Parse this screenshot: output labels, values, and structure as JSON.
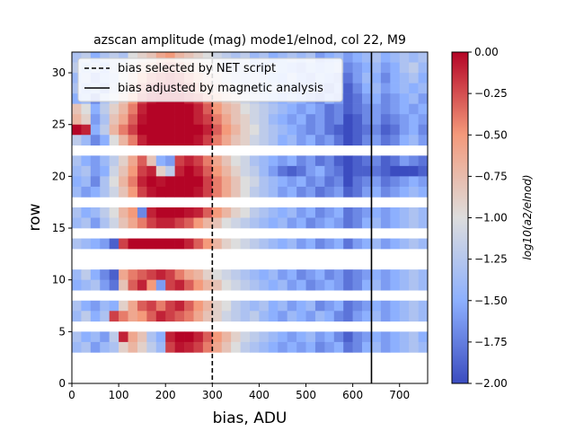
{
  "chart_data": {
    "type": "heatmap",
    "title": "azscan amplitude (mag) mode1/elnod, col 22, M9",
    "xlabel": "bias, ADU",
    "ylabel": "row",
    "xlim": [
      0,
      760
    ],
    "ylim": [
      0,
      32
    ],
    "x_ticks": [
      0,
      100,
      200,
      300,
      400,
      500,
      600,
      700
    ],
    "y_ticks": [
      0,
      5,
      10,
      15,
      20,
      25,
      30
    ],
    "colorbar": {
      "label": "log10(a2/elnod)",
      "colormap": "coolwarm",
      "min": -2.0,
      "max": 0.0,
      "ticks": [
        0.0,
        -0.25,
        -0.5,
        -0.75,
        -1.0,
        -1.25,
        -1.5,
        -1.75,
        -2.0
      ],
      "tick_labels": [
        "0.00",
        "−0.25",
        "−0.50",
        "−0.75",
        "−1.00",
        "−1.25",
        "−1.50",
        "−1.75",
        "−2.00"
      ]
    },
    "vlines": [
      {
        "x": 300,
        "style": "dashed",
        "label": "bias selected by NET script"
      },
      {
        "x": 640,
        "style": "solid",
        "label": "bias adjusted by magnetic analysis"
      }
    ],
    "legend_position": "top-left",
    "grid": false,
    "bias_step": 20,
    "rows_present": [
      3,
      4,
      6,
      7,
      9,
      10,
      13,
      15,
      16,
      18,
      19,
      20,
      21,
      23,
      24,
      25,
      26,
      27,
      28,
      29,
      30,
      31
    ],
    "row_profiles": [
      {
        "row": 31,
        "values": [
          -1.3,
          -1.2,
          -1.5,
          -1.3,
          -1.2,
          -1.3,
          -1.0,
          -0.9,
          -0.8,
          -0.6,
          -0.5,
          -0.7,
          -0.8,
          -0.9,
          -1.0,
          -1.1,
          -1.2,
          -1.3,
          -1.2,
          -1.4,
          -1.3,
          -1.5,
          -1.4,
          -1.3,
          -1.4,
          -1.3,
          -1.6,
          -1.5,
          -1.4,
          -1.6,
          -1.5,
          -1.4,
          -1.3,
          -1.5,
          -1.4,
          -1.3,
          -1.4,
          -1.3
        ]
      },
      {
        "row": 30,
        "values": [
          -1.2,
          -1.4,
          -1.3,
          -1.5,
          -1.2,
          -1.1,
          -0.9,
          -0.7,
          -0.6,
          -0.4,
          -0.3,
          -0.4,
          -0.6,
          -0.8,
          -0.9,
          -1.0,
          -1.2,
          -1.3,
          -1.2,
          -1.4,
          -1.5,
          -1.3,
          -1.4,
          -1.5,
          -1.6,
          -1.4,
          -1.5,
          -1.4,
          -1.3,
          -1.7,
          -1.6,
          -1.5,
          -1.4,
          -1.6,
          -1.5,
          -1.3,
          -1.2,
          -1.4
        ]
      },
      {
        "row": 29,
        "values": [
          -1.4,
          -1.3,
          -1.6,
          -1.4,
          -1.3,
          -1.0,
          -0.8,
          -0.5,
          -0.3,
          -0.2,
          -0.1,
          -0.2,
          -0.4,
          -0.6,
          -0.8,
          -0.9,
          -1.1,
          -1.2,
          -1.3,
          -1.2,
          -1.3,
          -1.4,
          -1.5,
          -1.3,
          -1.5,
          -1.6,
          -1.4,
          -1.5,
          -1.6,
          -1.8,
          -1.6,
          -1.4,
          -1.5,
          -1.7,
          -1.5,
          -1.4,
          -1.3,
          -1.5
        ]
      },
      {
        "row": 28,
        "values": [
          -1.3,
          -1.5,
          -1.4,
          -1.6,
          -1.2,
          -0.9,
          -0.6,
          -0.3,
          -0.1,
          -0.05,
          -0.05,
          -0.1,
          -0.2,
          -0.4,
          -0.6,
          -0.8,
          -0.9,
          -1.1,
          -1.2,
          -1.3,
          -1.4,
          -1.3,
          -1.4,
          -1.5,
          -1.6,
          -1.5,
          -1.6,
          -1.7,
          -1.5,
          -1.9,
          -1.7,
          -1.5,
          -1.4,
          -1.6,
          -1.5,
          -1.4,
          -1.5,
          -1.4
        ]
      },
      {
        "row": 27,
        "values": [
          -1.5,
          -1.4,
          -1.7,
          -1.3,
          -1.1,
          -0.8,
          -0.5,
          -0.2,
          -0.05,
          0.0,
          0.0,
          0.0,
          -0.1,
          -0.2,
          -0.4,
          -0.6,
          -0.8,
          -0.9,
          -1.1,
          -1.2,
          -1.3,
          -1.4,
          -1.5,
          -1.4,
          -1.5,
          -1.6,
          -1.7,
          -1.5,
          -1.6,
          -1.9,
          -1.8,
          -1.6,
          -1.5,
          -1.7,
          -1.6,
          -1.5,
          -1.4,
          -1.6
        ]
      },
      {
        "row": 26,
        "values": [
          -0.8,
          -1.0,
          -1.5,
          -1.2,
          -0.9,
          -0.7,
          -0.4,
          -0.1,
          0.0,
          0.0,
          0.0,
          0.0,
          0.0,
          -0.1,
          -0.3,
          -0.5,
          -0.7,
          -0.8,
          -1.0,
          -1.1,
          -1.2,
          -1.3,
          -1.4,
          -1.5,
          -1.6,
          -1.5,
          -1.6,
          -1.8,
          -1.7,
          -1.9,
          -1.8,
          -1.7,
          -1.6,
          -1.7,
          -1.6,
          -1.5,
          -1.6,
          -1.5
        ]
      },
      {
        "row": 25,
        "values": [
          -0.7,
          -0.9,
          -1.6,
          -1.3,
          -0.8,
          -0.6,
          -0.3,
          -0.05,
          0.0,
          0.0,
          0.0,
          0.0,
          0.0,
          -0.1,
          -0.2,
          -0.4,
          -0.6,
          -0.8,
          -0.9,
          -1.1,
          -1.2,
          -1.4,
          -1.5,
          -1.6,
          -1.5,
          -1.7,
          -1.6,
          -1.8,
          -1.7,
          -2.0,
          -1.9,
          -1.7,
          -1.6,
          -1.8,
          -1.7,
          -1.6,
          -1.5,
          -1.6
        ]
      },
      {
        "row": 24,
        "values": [
          0.0,
          -0.1,
          -1.5,
          -1.2,
          -0.7,
          -0.4,
          -0.2,
          0.0,
          0.0,
          0.0,
          0.0,
          0.0,
          0.0,
          0.0,
          -0.1,
          -0.3,
          -0.5,
          -0.7,
          -0.9,
          -1.0,
          -1.2,
          -1.3,
          -1.4,
          -1.5,
          -1.6,
          -1.7,
          -1.6,
          -1.8,
          -1.9,
          -2.0,
          -1.9,
          -1.8,
          -1.7,
          -1.9,
          -1.8,
          -1.6,
          -1.5,
          -1.7
        ]
      },
      {
        "row": 23,
        "values": [
          -1.2,
          -1.4,
          -1.7,
          -1.5,
          -1.0,
          -0.7,
          -0.4,
          -0.1,
          0.0,
          0.0,
          0.0,
          0.0,
          0.0,
          -0.05,
          -0.2,
          -0.4,
          -0.6,
          -0.8,
          -0.9,
          -1.1,
          -1.2,
          -1.3,
          -1.5,
          -1.4,
          -1.6,
          -1.5,
          -1.7,
          -1.6,
          -1.8,
          -2.0,
          -1.9,
          -1.7,
          -1.6,
          -1.8,
          -1.7,
          -1.5,
          -1.4,
          -1.6
        ]
      },
      {
        "row": 21,
        "values": [
          -1.3,
          -1.5,
          -1.6,
          -1.4,
          -1.2,
          -0.9,
          -0.6,
          -0.3,
          -0.8,
          -1.5,
          -1.6,
          -0.2,
          -0.1,
          -0.2,
          -0.4,
          -0.6,
          -0.8,
          -1.0,
          -1.1,
          -1.3,
          -1.4,
          -1.5,
          -1.6,
          -1.5,
          -1.7,
          -1.6,
          -1.8,
          -1.7,
          -1.9,
          -2.0,
          -1.9,
          -1.8,
          -1.7,
          -1.9,
          -1.8,
          -1.6,
          -1.7,
          -1.8
        ]
      },
      {
        "row": 20,
        "values": [
          -1.4,
          -1.3,
          -1.6,
          -1.5,
          -1.1,
          -0.8,
          -0.5,
          -0.2,
          -0.1,
          -0.9,
          -1.2,
          -0.1,
          0.0,
          -0.1,
          -0.3,
          -0.5,
          -0.7,
          -0.9,
          -1.1,
          -1.2,
          -1.4,
          -1.6,
          -1.8,
          -1.9,
          -1.8,
          -1.6,
          -1.5,
          -1.7,
          -1.8,
          -2.0,
          -1.9,
          -1.9,
          -1.8,
          -1.9,
          -2.0,
          -2.0,
          -2.0,
          -1.9
        ]
      },
      {
        "row": 19,
        "values": [
          -1.5,
          -1.4,
          -1.7,
          -1.3,
          -1.0,
          -0.7,
          -0.4,
          -0.1,
          0.0,
          -0.05,
          0.0,
          0.0,
          0.0,
          0.0,
          -0.2,
          -0.4,
          -0.6,
          -0.8,
          -1.0,
          -1.1,
          -1.3,
          -1.4,
          -1.5,
          -1.6,
          -1.5,
          -1.7,
          -1.6,
          -1.8,
          -1.7,
          -2.0,
          -1.8,
          -1.7,
          -1.6,
          -1.8,
          -1.7,
          -1.6,
          -1.5,
          -1.6
        ]
      },
      {
        "row": 18,
        "values": [
          -1.4,
          -1.6,
          -1.5,
          -1.3,
          -1.1,
          -0.8,
          -0.5,
          -0.2,
          -0.05,
          0.0,
          0.0,
          0.0,
          0.0,
          -0.05,
          -0.2,
          -0.4,
          -0.6,
          -0.8,
          -1.0,
          -1.2,
          -1.3,
          -1.4,
          -1.6,
          -1.5,
          -1.7,
          -1.6,
          -1.8,
          -1.7,
          -1.6,
          -1.9,
          -1.8,
          -1.6,
          -1.5,
          -1.7,
          -1.6,
          -1.5,
          -1.4,
          -1.5
        ]
      },
      {
        "row": 16,
        "values": [
          -1.3,
          -1.5,
          -1.4,
          -1.2,
          -1.0,
          -0.7,
          -0.5,
          -1.7,
          -0.1,
          0.0,
          0.0,
          0.0,
          -0.05,
          -0.1,
          -0.3,
          -0.5,
          -0.7,
          -0.9,
          -1.0,
          -1.2,
          -1.3,
          -1.4,
          -1.5,
          -1.4,
          -1.6,
          -1.5,
          -1.7,
          -1.6,
          -1.5,
          -1.8,
          -1.7,
          -1.6,
          -1.5,
          -1.6,
          -1.5,
          -1.4,
          -1.3,
          -1.4
        ]
      },
      {
        "row": 15,
        "values": [
          -1.4,
          -1.3,
          -1.6,
          -1.3,
          -1.1,
          -0.8,
          -0.6,
          -0.4,
          -0.2,
          -0.1,
          -0.1,
          -0.2,
          -0.3,
          -0.5,
          -0.7,
          -0.8,
          -1.0,
          -1.1,
          -1.2,
          -1.3,
          -1.4,
          -1.5,
          -1.4,
          -1.6,
          -1.5,
          -1.7,
          -1.6,
          -1.5,
          -1.6,
          -1.8,
          -1.7,
          -1.5,
          -1.4,
          -1.6,
          -1.5,
          -1.4,
          -1.3,
          -1.4
        ]
      },
      {
        "row": 13,
        "values": [
          -1.3,
          -1.4,
          -1.5,
          -1.6,
          -1.9,
          -0.2,
          0.0,
          0.0,
          0.0,
          0.0,
          0.0,
          0.0,
          -0.1,
          -0.3,
          -0.5,
          -0.7,
          -0.9,
          -1.0,
          -1.1,
          -1.2,
          -1.3,
          -1.4,
          -1.5,
          -1.4,
          -1.6,
          -1.5,
          -1.7,
          -1.6,
          -1.5,
          -1.8,
          -1.6,
          -1.5,
          -1.4,
          -1.6,
          -1.5,
          -1.4,
          -1.3,
          -1.4
        ]
      },
      {
        "row": 10,
        "values": [
          -1.4,
          -1.2,
          -1.5,
          -1.7,
          -1.9,
          -0.6,
          -0.4,
          -0.3,
          -0.2,
          -0.1,
          -0.2,
          -0.4,
          -0.6,
          -0.7,
          -0.9,
          -1.0,
          -1.1,
          -1.2,
          -1.3,
          -1.4,
          -1.5,
          -1.4,
          -1.6,
          -1.5,
          -1.7,
          -1.6,
          -1.5,
          -1.7,
          -1.6,
          -1.8,
          -1.7,
          -1.6,
          -1.5,
          -1.6,
          -1.5,
          -1.4,
          -1.3,
          -1.4
        ]
      },
      {
        "row": 9,
        "values": [
          -1.5,
          -1.4,
          -1.3,
          -1.6,
          -1.8,
          -0.8,
          -0.3,
          -0.1,
          -0.5,
          -1.6,
          -0.2,
          -0.1,
          -0.3,
          -0.5,
          -0.7,
          -0.8,
          -1.0,
          -1.1,
          -1.2,
          -1.3,
          -1.4,
          -1.5,
          -1.4,
          -1.6,
          -1.5,
          -1.7,
          -1.6,
          -1.5,
          -1.6,
          -1.8,
          -1.7,
          -1.5,
          -1.4,
          -1.6,
          -1.5,
          -1.4,
          -1.3,
          -1.4
        ]
      },
      {
        "row": 7,
        "values": [
          -1.3,
          -1.5,
          -1.6,
          -1.4,
          -1.5,
          -0.9,
          -0.6,
          -0.3,
          -0.2,
          -0.4,
          -0.2,
          -0.1,
          -0.3,
          -0.5,
          -0.7,
          -0.9,
          -1.0,
          -1.2,
          -1.3,
          -1.4,
          -1.3,
          -1.5,
          -1.4,
          -1.6,
          -1.5,
          -1.4,
          -1.7,
          -1.6,
          -1.5,
          -1.8,
          -1.7,
          -1.6,
          -1.5,
          -1.6,
          -1.5,
          -1.4,
          -1.3,
          -1.4
        ]
      },
      {
        "row": 6,
        "values": [
          -1.4,
          -1.2,
          -1.5,
          -1.3,
          -0.2,
          -0.4,
          -0.6,
          -0.5,
          -0.3,
          -0.1,
          -0.2,
          -0.3,
          -0.4,
          -0.6,
          -0.8,
          -0.9,
          -1.1,
          -1.2,
          -1.3,
          -1.2,
          -1.4,
          -1.5,
          -1.6,
          -1.4,
          -1.5,
          -1.6,
          -1.4,
          -1.5,
          -1.7,
          -1.8,
          -1.6,
          -1.5,
          -1.4,
          -1.6,
          -1.5,
          -1.4,
          -1.3,
          -1.4
        ]
      },
      {
        "row": 4,
        "values": [
          -1.3,
          -1.5,
          -1.4,
          -1.6,
          -1.2,
          -0.1,
          -0.6,
          -0.8,
          -1.3,
          -1.5,
          -0.1,
          0.0,
          0.0,
          -0.1,
          -0.3,
          -0.5,
          -0.7,
          -0.9,
          -1.1,
          -1.2,
          -1.3,
          -1.4,
          -1.5,
          -1.6,
          -1.5,
          -1.4,
          -1.6,
          -1.5,
          -1.7,
          -1.9,
          -1.7,
          -1.6,
          -1.5,
          -1.6,
          -1.5,
          -1.4,
          -1.3,
          -1.5
        ]
      },
      {
        "row": 3,
        "values": [
          -1.4,
          -1.3,
          -1.6,
          -1.4,
          -1.3,
          -0.9,
          -0.7,
          -0.9,
          -1.2,
          -1.4,
          -0.2,
          -0.05,
          -0.1,
          -0.2,
          -0.4,
          -0.6,
          -0.8,
          -1.0,
          -1.2,
          -1.3,
          -1.4,
          -1.5,
          -1.6,
          -1.5,
          -1.6,
          -1.5,
          -1.7,
          -1.6,
          -1.5,
          -1.8,
          -1.7,
          -1.5,
          -1.4,
          -1.6,
          -1.5,
          -1.4,
          -1.3,
          -1.4
        ]
      }
    ]
  }
}
